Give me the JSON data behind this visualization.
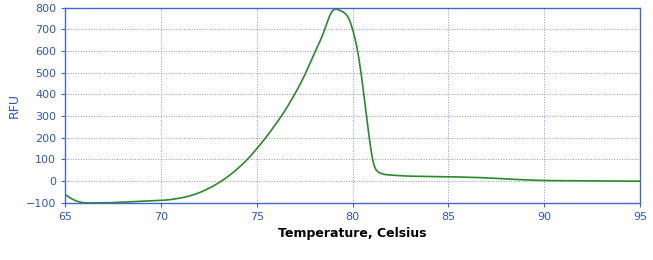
{
  "xlabel": "Temperature, Celsius",
  "ylabel": "RFU",
  "xlim": [
    65,
    95
  ],
  "ylim": [
    -100,
    800
  ],
  "xticks": [
    65,
    70,
    75,
    80,
    85,
    90,
    95
  ],
  "yticks": [
    -100,
    0,
    100,
    200,
    300,
    400,
    500,
    600,
    700,
    800
  ],
  "line_color": "#2a8a2a",
  "background_color": "#ffffff",
  "plot_bg_color": "#ffffff",
  "spine_color": "#4466cc",
  "grid_color": "#8899cc",
  "tick_label_color": "#3355bb",
  "xlabel_color": "#000000",
  "ylabel_color": "#3355bb",
  "xlabel_fontsize": 9,
  "ylabel_fontsize": 9,
  "tick_fontsize": 8,
  "curve_points": [
    [
      65.0,
      -62
    ],
    [
      65.3,
      -80
    ],
    [
      65.7,
      -95
    ],
    [
      66.0,
      -100
    ],
    [
      66.5,
      -100
    ],
    [
      67.0,
      -100
    ],
    [
      67.5,
      -99
    ],
    [
      68.0,
      -97
    ],
    [
      68.5,
      -95
    ],
    [
      69.0,
      -93
    ],
    [
      69.5,
      -91
    ],
    [
      70.0,
      -89
    ],
    [
      70.5,
      -85
    ],
    [
      71.0,
      -78
    ],
    [
      71.5,
      -68
    ],
    [
      72.0,
      -53
    ],
    [
      72.5,
      -33
    ],
    [
      73.0,
      -8
    ],
    [
      73.5,
      22
    ],
    [
      74.0,
      58
    ],
    [
      74.5,
      100
    ],
    [
      75.0,
      150
    ],
    [
      75.5,
      205
    ],
    [
      76.0,
      265
    ],
    [
      76.5,
      330
    ],
    [
      77.0,
      405
    ],
    [
      77.5,
      490
    ],
    [
      78.0,
      590
    ],
    [
      78.5,
      690
    ],
    [
      78.7,
      740
    ],
    [
      79.0,
      790
    ],
    [
      79.2,
      793
    ],
    [
      79.4,
      785
    ],
    [
      79.8,
      750
    ],
    [
      80.0,
      700
    ],
    [
      80.3,
      580
    ],
    [
      80.6,
      390
    ],
    [
      80.9,
      180
    ],
    [
      81.1,
      80
    ],
    [
      81.3,
      45
    ],
    [
      81.5,
      35
    ],
    [
      82.0,
      28
    ],
    [
      82.5,
      25
    ],
    [
      83.0,
      23
    ],
    [
      83.5,
      22
    ],
    [
      84.0,
      21
    ],
    [
      85.0,
      20
    ],
    [
      86.0,
      18
    ],
    [
      87.0,
      15
    ],
    [
      88.0,
      10
    ],
    [
      89.0,
      6
    ],
    [
      90.0,
      3
    ],
    [
      91.0,
      2
    ],
    [
      92.0,
      1
    ],
    [
      93.0,
      1
    ],
    [
      94.0,
      0
    ],
    [
      95.0,
      0
    ]
  ]
}
